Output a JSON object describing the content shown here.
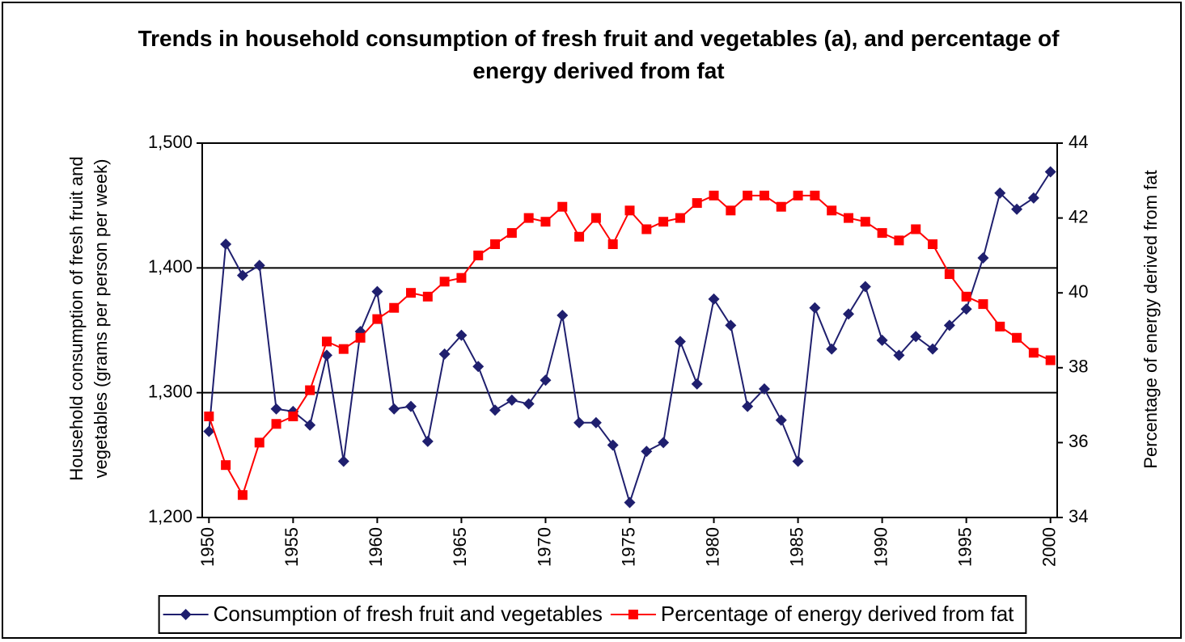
{
  "chart_data": {
    "type": "line",
    "title": "Trends in household consumption of fresh fruit and vegetables (a), and percentage of energy derived from fat",
    "y_label": "Household consumption of fresh fruit and vegetables (grams per person per week)",
    "y2_label": "Percentage of energy derived from fat",
    "x": [
      1950,
      1951,
      1952,
      1953,
      1954,
      1955,
      1956,
      1957,
      1958,
      1959,
      1960,
      1961,
      1962,
      1963,
      1964,
      1965,
      1966,
      1967,
      1968,
      1969,
      1970,
      1971,
      1972,
      1973,
      1974,
      1975,
      1976,
      1977,
      1978,
      1979,
      1980,
      1981,
      1982,
      1983,
      1984,
      1985,
      1986,
      1987,
      1988,
      1989,
      1990,
      1991,
      1992,
      1993,
      1994,
      1995,
      1996,
      1997,
      1998,
      1999,
      2000
    ],
    "xlim": [
      1949.6,
      2000.4
    ],
    "xticks": [
      1950,
      1955,
      1960,
      1965,
      1970,
      1975,
      1980,
      1985,
      1990,
      1995,
      2000
    ],
    "ylim": [
      1200,
      1500
    ],
    "yticks": [
      {
        "value": 1200,
        "label": "1,200"
      },
      {
        "value": 1300,
        "label": "1,300"
      },
      {
        "value": 1400,
        "label": "1,400"
      },
      {
        "value": 1500,
        "label": "1,500"
      }
    ],
    "y2lim": [
      34,
      44
    ],
    "y2ticks": [
      34,
      36,
      38,
      40,
      42,
      44
    ],
    "grid": true,
    "legend": "bottom",
    "series": [
      {
        "name": "Consumption of fresh fruit and vegetables",
        "color": "#1f1f6e",
        "marker": "diamond",
        "values": [
          1269,
          1419,
          1394,
          1402,
          1287,
          1285,
          1274,
          1330,
          1245,
          1349,
          1381,
          1287,
          1289,
          1261,
          1331,
          1346,
          1321,
          1286,
          1294,
          1291,
          1310,
          1362,
          1276,
          1276,
          1258,
          1212,
          1253,
          1260,
          1341,
          1307,
          1375,
          1354,
          1289,
          1303,
          1278,
          1245,
          1368,
          1335,
          1363,
          1385,
          1342,
          1330,
          1345,
          1335,
          1354,
          1367,
          1408,
          1460,
          1447,
          1456,
          1477
        ]
      },
      {
        "name": "Percentage of energy derived from fat",
        "color": "#ff0000",
        "marker": "square",
        "axis": "y2",
        "values": [
          36.7,
          35.4,
          34.6,
          36.0,
          36.5,
          36.7,
          37.4,
          38.7,
          38.5,
          38.8,
          39.3,
          39.6,
          40.0,
          39.9,
          40.3,
          40.4,
          41.0,
          41.3,
          41.6,
          42.0,
          41.9,
          42.3,
          41.5,
          42.0,
          41.3,
          42.2,
          41.7,
          41.9,
          42.0,
          42.4,
          42.6,
          42.2,
          42.6,
          42.6,
          42.3,
          42.6,
          42.6,
          42.2,
          42.0,
          41.9,
          41.6,
          41.4,
          41.7,
          41.3,
          40.5,
          39.9,
          39.7,
          39.1,
          38.8,
          38.4,
          38.2
        ]
      }
    ]
  }
}
